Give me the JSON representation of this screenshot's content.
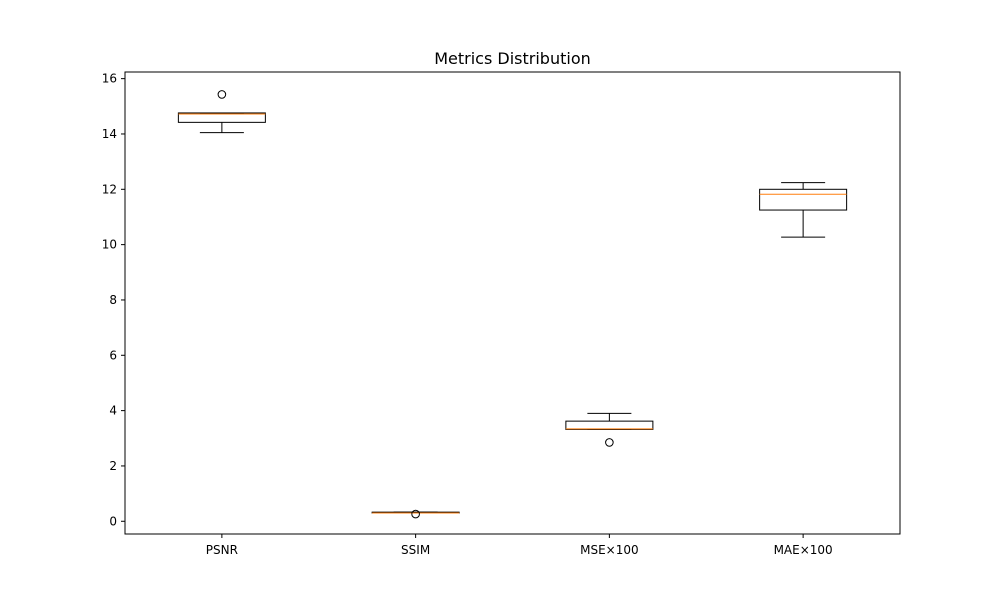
{
  "chart_data": {
    "type": "box",
    "title": "Metrics Distribution",
    "xlabel": "",
    "ylabel": "",
    "ylim": [
      -0.46,
      16.24
    ],
    "yticks": [
      "0",
      "2",
      "4",
      "6",
      "8",
      "10",
      "12",
      "14",
      "16"
    ],
    "grid": false,
    "categories": [
      "PSNR",
      "SSIM",
      "MSE×100",
      "MAE×100"
    ],
    "boxes": [
      {
        "label": "PSNR",
        "whisker_low": 14.05,
        "q1": 14.42,
        "median": 14.72,
        "q3": 14.76,
        "whisker_high": 14.76,
        "outliers": [
          15.43
        ]
      },
      {
        "label": "SSIM",
        "whisker_low": 0.3,
        "q1": 0.3,
        "median": 0.3,
        "q3": 0.33,
        "whisker_high": 0.33,
        "outliers": [
          0.26
        ]
      },
      {
        "label": "MSE×100",
        "whisker_low": 3.32,
        "q1": 3.32,
        "median": 3.34,
        "q3": 3.62,
        "whisker_high": 3.9,
        "outliers": [
          2.85
        ]
      },
      {
        "label": "MAE×100",
        "whisker_low": 10.27,
        "q1": 11.25,
        "median": 11.82,
        "q3": 12.0,
        "whisker_high": 12.24,
        "outliers": []
      }
    ],
    "colors": {
      "box": "#000000",
      "median": "#ff7f0e",
      "outlier": "#000000"
    }
  }
}
